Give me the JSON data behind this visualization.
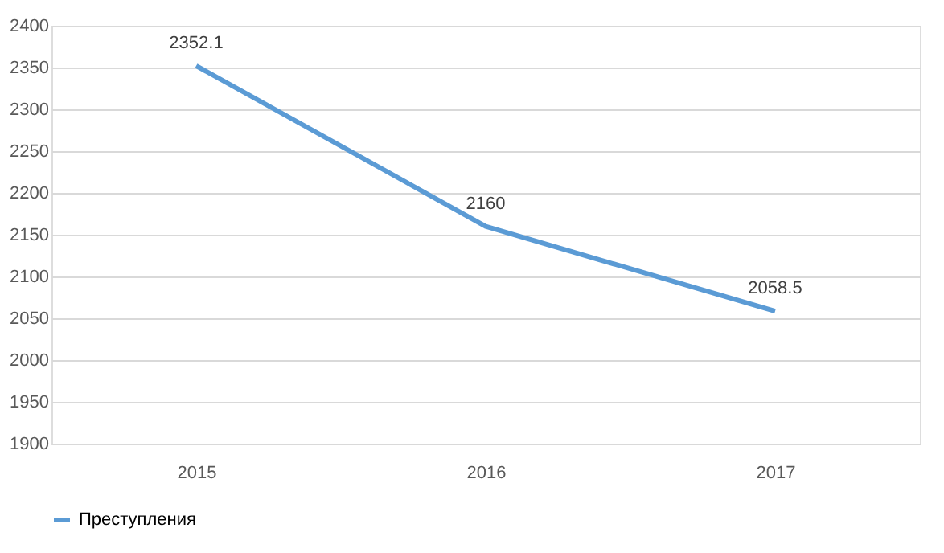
{
  "chart_data": {
    "type": "line",
    "categories": [
      "2015",
      "2016",
      "2017"
    ],
    "series": [
      {
        "name": "Преступления",
        "color": "#5b9bd5",
        "values": [
          2352.1,
          2160,
          2058.5
        ]
      }
    ],
    "ylim": [
      1900,
      2400
    ],
    "yticks": [
      1900,
      1950,
      2000,
      2050,
      2100,
      2150,
      2200,
      2250,
      2300,
      2350,
      2400
    ],
    "grid": "y",
    "legend": "bottom",
    "data_labels": true,
    "marker": "none",
    "line_style": "solid"
  }
}
